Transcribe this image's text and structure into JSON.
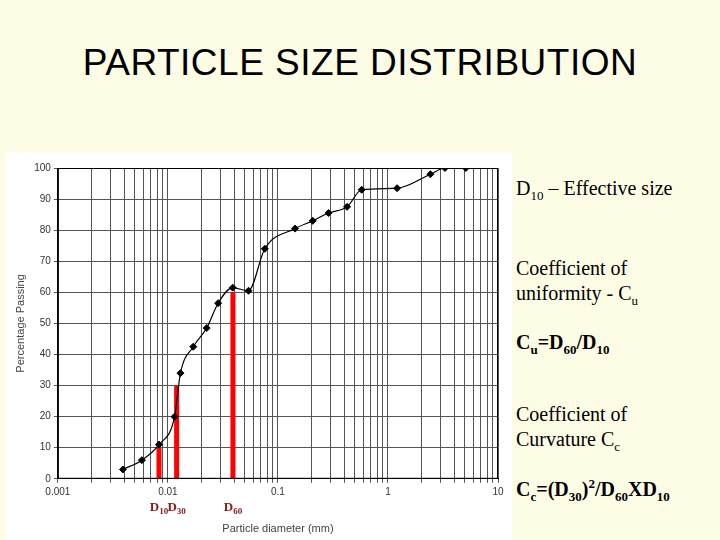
{
  "chart_data": {
    "type": "line",
    "title": "PARTICLE SIZE DISTRIBUTION",
    "x_label": "Particle diameter (mm)",
    "y_label": "Percentage Passing",
    "x": [
      0.0039,
      0.0058,
      0.0083,
      0.0115,
      0.013,
      0.017,
      0.0225,
      0.0286,
      0.0388,
      0.054,
      0.076,
      0.143,
      0.207,
      0.288,
      0.425,
      0.577,
      1.21,
      2.43,
      3.3,
      5.1
    ],
    "values": [
      3,
      6,
      11,
      20,
      34,
      42.5,
      48.5,
      56.5,
      61.5,
      60.5,
      74,
      80.5,
      83,
      85.5,
      87.5,
      93,
      93.5,
      98,
      100,
      100
    ],
    "color": "#000000",
    "marker": "diamond",
    "log": "x",
    "xlim": [
      0.001,
      10
    ],
    "xticks": [
      0.001,
      0.01,
      0.1,
      1,
      10
    ],
    "ylim": [
      0,
      100
    ],
    "yticks": [
      0,
      10,
      20,
      30,
      40,
      50,
      60,
      70,
      80,
      90,
      100
    ],
    "grid": true,
    "markers": [
      {
        "label": "D10",
        "x": 0.0083,
        "y": 10,
        "color": "#ff0000"
      },
      {
        "label": "D30",
        "x": 0.012,
        "y": 30,
        "color": "#ff0000"
      },
      {
        "label": "D60",
        "x": 0.039,
        "y": 60,
        "color": "#ff0000"
      }
    ],
    "annotations": [
      "D10 – Effective size",
      "Coefficient of uniformity - Cu",
      "Cu=D60/D10",
      "Coefficient of Curvature Cc",
      "Cc=(D30)2/D60XD10"
    ]
  }
}
